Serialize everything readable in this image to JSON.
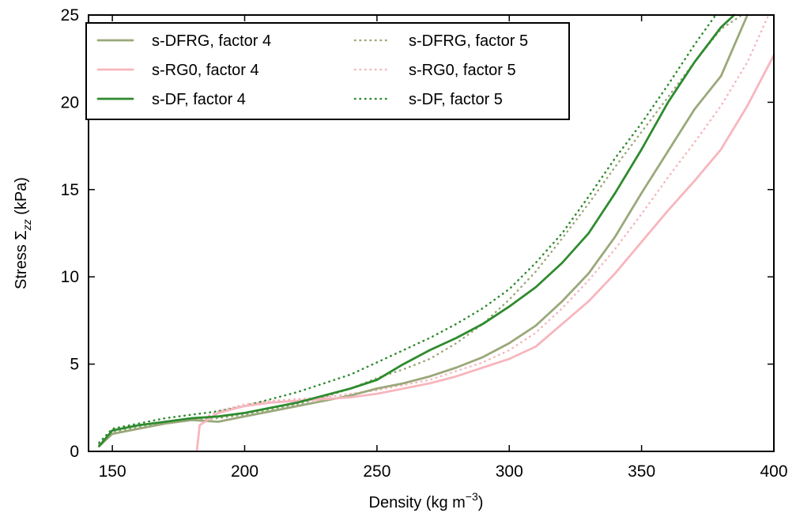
{
  "chart_data": {
    "type": "line",
    "xlabel": "Density (kg m",
    "xlabel_exp": "−3",
    "xlabel_close": ")",
    "ylabel": "Stress Σ",
    "ylabel_sub": "zz",
    "ylabel_unit": " (kPa)",
    "xlim": [
      141,
      400
    ],
    "ylim": [
      0,
      25
    ],
    "xticks": [
      "150",
      "200",
      "250",
      "300",
      "350",
      "400"
    ],
    "yticks": [
      "0",
      "5",
      "10",
      "15",
      "20",
      "25"
    ],
    "grid": false,
    "legend": {
      "placement": "top-left",
      "columns": 2
    },
    "series": [
      {
        "name": "s-DFRG, factor 4",
        "color": "#9aa87a",
        "style": "solid",
        "x": [
          145,
          150,
          160,
          170,
          180,
          190,
          200,
          210,
          220,
          230,
          240,
          250,
          260,
          270,
          280,
          290,
          300,
          310,
          320,
          330,
          340,
          350,
          360,
          370,
          380,
          390
        ],
        "y": [
          0.3,
          1.0,
          1.3,
          1.6,
          1.8,
          1.7,
          2.0,
          2.3,
          2.6,
          2.9,
          3.2,
          3.6,
          3.9,
          4.3,
          4.8,
          5.4,
          6.2,
          7.2,
          8.6,
          10.2,
          12.3,
          14.8,
          17.2,
          19.6,
          21.5,
          25.0
        ]
      },
      {
        "name": "s-RG0, factor 4",
        "color": "#f7b6bd",
        "style": "solid",
        "x": [
          182,
          183,
          190,
          200,
          210,
          220,
          230,
          240,
          250,
          260,
          270,
          280,
          290,
          300,
          310,
          320,
          330,
          340,
          350,
          360,
          370,
          380,
          390,
          400
        ],
        "y": [
          0.1,
          1.5,
          2.2,
          2.6,
          2.8,
          2.9,
          3.0,
          3.1,
          3.3,
          3.6,
          3.9,
          4.3,
          4.8,
          5.3,
          6.0,
          7.3,
          8.6,
          10.2,
          12.0,
          13.8,
          15.5,
          17.3,
          19.8,
          22.7
        ]
      },
      {
        "name": "s-DF, factor 4",
        "color": "#2e8b2e",
        "style": "solid",
        "x": [
          145,
          150,
          160,
          170,
          180,
          190,
          200,
          210,
          220,
          230,
          240,
          250,
          260,
          270,
          280,
          290,
          300,
          310,
          320,
          330,
          340,
          350,
          360,
          370,
          380,
          385
        ],
        "y": [
          0.3,
          1.2,
          1.5,
          1.7,
          1.9,
          2.0,
          2.2,
          2.5,
          2.8,
          3.2,
          3.6,
          4.1,
          5.0,
          5.8,
          6.5,
          7.3,
          8.3,
          9.4,
          10.8,
          12.5,
          14.8,
          17.3,
          20.0,
          22.3,
          24.3,
          25.0
        ]
      },
      {
        "name": "s-DFRG, factor 5",
        "color": "#9aa87a",
        "style": "dotted",
        "x": [
          145,
          150,
          160,
          170,
          180,
          190,
          200,
          210,
          220,
          230,
          240,
          250,
          260,
          270,
          280,
          290,
          300,
          310,
          320,
          330,
          340,
          350,
          360,
          370,
          380,
          388
        ],
        "y": [
          0.4,
          1.1,
          1.4,
          1.6,
          1.8,
          1.9,
          2.1,
          2.4,
          2.7,
          3.1,
          3.6,
          4.2,
          4.7,
          5.3,
          6.2,
          7.3,
          8.7,
          10.3,
          12.2,
          14.2,
          16.3,
          18.3,
          20.3,
          22.3,
          24.2,
          25.0
        ]
      },
      {
        "name": "s-RG0, factor 5",
        "color": "#f7b6bd",
        "style": "dotted",
        "x": [
          183,
          190,
          200,
          210,
          220,
          230,
          240,
          250,
          260,
          270,
          280,
          290,
          300,
          310,
          320,
          330,
          340,
          350,
          360,
          370,
          380,
          390,
          398
        ],
        "y": [
          1.8,
          2.3,
          2.7,
          2.9,
          3.0,
          3.1,
          3.3,
          3.5,
          3.8,
          4.1,
          4.6,
          5.1,
          5.8,
          6.8,
          8.2,
          9.8,
          11.6,
          13.6,
          15.7,
          17.7,
          19.8,
          22.3,
          25.0
        ]
      },
      {
        "name": "s-DF, factor 5",
        "color": "#2e8b2e",
        "style": "dotted",
        "x": [
          145,
          150,
          160,
          170,
          180,
          190,
          200,
          210,
          220,
          230,
          240,
          250,
          260,
          270,
          280,
          290,
          300,
          310,
          320,
          330,
          340,
          350,
          360,
          370,
          378
        ],
        "y": [
          0.5,
          1.3,
          1.6,
          1.9,
          2.1,
          2.3,
          2.6,
          3.0,
          3.4,
          3.9,
          4.4,
          5.1,
          5.8,
          6.5,
          7.3,
          8.2,
          9.3,
          10.8,
          12.5,
          14.6,
          16.8,
          18.8,
          21.0,
          23.3,
          25.0
        ]
      }
    ]
  }
}
